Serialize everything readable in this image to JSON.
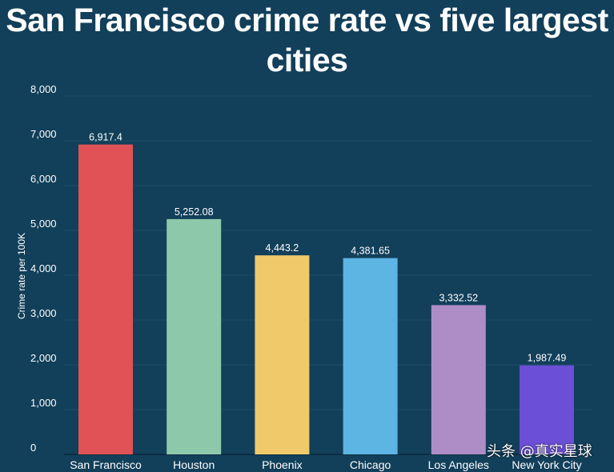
{
  "chart_data": {
    "type": "bar",
    "title": "San Francisco crime rate vs five largest cities",
    "xlabel": "",
    "ylabel": "Crime rate per 100K",
    "ylim": [
      0,
      8000
    ],
    "yticks": [
      0,
      1000,
      2000,
      3000,
      4000,
      5000,
      6000,
      7000,
      8000
    ],
    "ytick_labels": [
      "0",
      "1,000",
      "2,000",
      "3,000",
      "4,000",
      "5,000",
      "6,000",
      "7,000",
      "8,000"
    ],
    "grid": true,
    "categories": [
      "San Francisco",
      "Houston",
      "Phoenix",
      "Chicago",
      "Los Angeles",
      "New York City"
    ],
    "values": [
      6917.4,
      5252.08,
      4443.2,
      4381.65,
      3332.52,
      1987.49
    ],
    "value_labels": [
      "6,917.4",
      "5,252.08",
      "4,443.2",
      "4,381.65",
      "3,332.52",
      "1,987.49"
    ],
    "colors": [
      "#e05256",
      "#8ec8ab",
      "#efc96a",
      "#5db5e3",
      "#ae8dc7",
      "#6b4fd6"
    ]
  },
  "background_color": "#123f5a",
  "watermark": "头条 @真实星球"
}
